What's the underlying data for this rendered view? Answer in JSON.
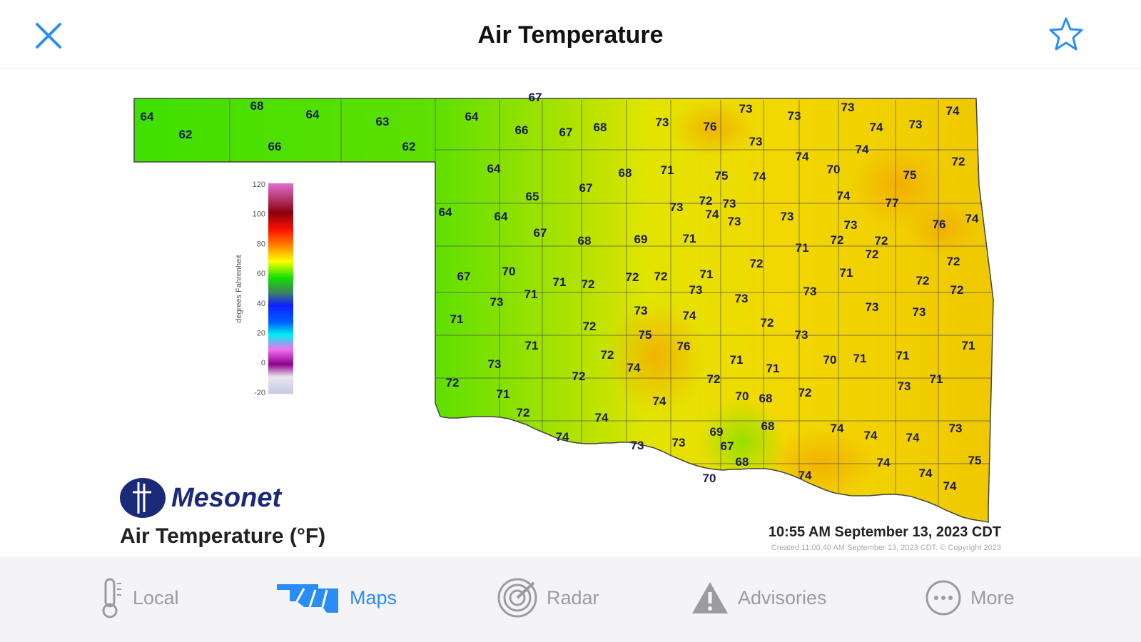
{
  "header": {
    "title": "Air Temperature",
    "close_icon": "close-icon",
    "favorite_icon": "star-icon",
    "accent": "#2a8df5"
  },
  "map": {
    "title": "Air Temperature (°F)",
    "logo": "Mesonet",
    "timestamp": "10:55 AM September 13, 2023 CDT",
    "created": "Created 11:00:40 AM September 13, 2023 CDT. © Copyright 2023",
    "legend": {
      "label": "degrees Fahrenheit",
      "ticks": [
        "120",
        "100",
        "80",
        "60",
        "40",
        "20",
        "0",
        "-20"
      ]
    },
    "temperatures": [
      64,
      62,
      68,
      66,
      64,
      63,
      62,
      64,
      67,
      66,
      67,
      68,
      73,
      76,
      73,
      73,
      73,
      74,
      74,
      73,
      73,
      74,
      74,
      72,
      64,
      68,
      71,
      75,
      74,
      70,
      75,
      65,
      67,
      73,
      72,
      73,
      74,
      77,
      64,
      64,
      74,
      73,
      73,
      73,
      76,
      74,
      67,
      68,
      69,
      71,
      71,
      72,
      72,
      72,
      72,
      67,
      70,
      71,
      72,
      72,
      72,
      71,
      73,
      72,
      71,
      72,
      72,
      73,
      71,
      73,
      73,
      71,
      73,
      74,
      73,
      73,
      72,
      75,
      72,
      73,
      76,
      71,
      72,
      74,
      71,
      71,
      70,
      71,
      71,
      71,
      73,
      72,
      72,
      72,
      72,
      73,
      71,
      71,
      70,
      68,
      72,
      74,
      74,
      74,
      69,
      68,
      74,
      74,
      74,
      73,
      73,
      73,
      67,
      68,
      74,
      75,
      70,
      74,
      74,
      74
    ]
  },
  "tabs": [
    {
      "label": "Local",
      "icon": "thermometer-icon",
      "active": false
    },
    {
      "label": "Maps",
      "icon": "map-icon",
      "active": true
    },
    {
      "label": "Radar",
      "icon": "radar-icon",
      "active": false
    },
    {
      "label": "Advisories",
      "icon": "warning-icon",
      "active": false
    },
    {
      "label": "More",
      "icon": "more-icon",
      "active": false
    }
  ]
}
